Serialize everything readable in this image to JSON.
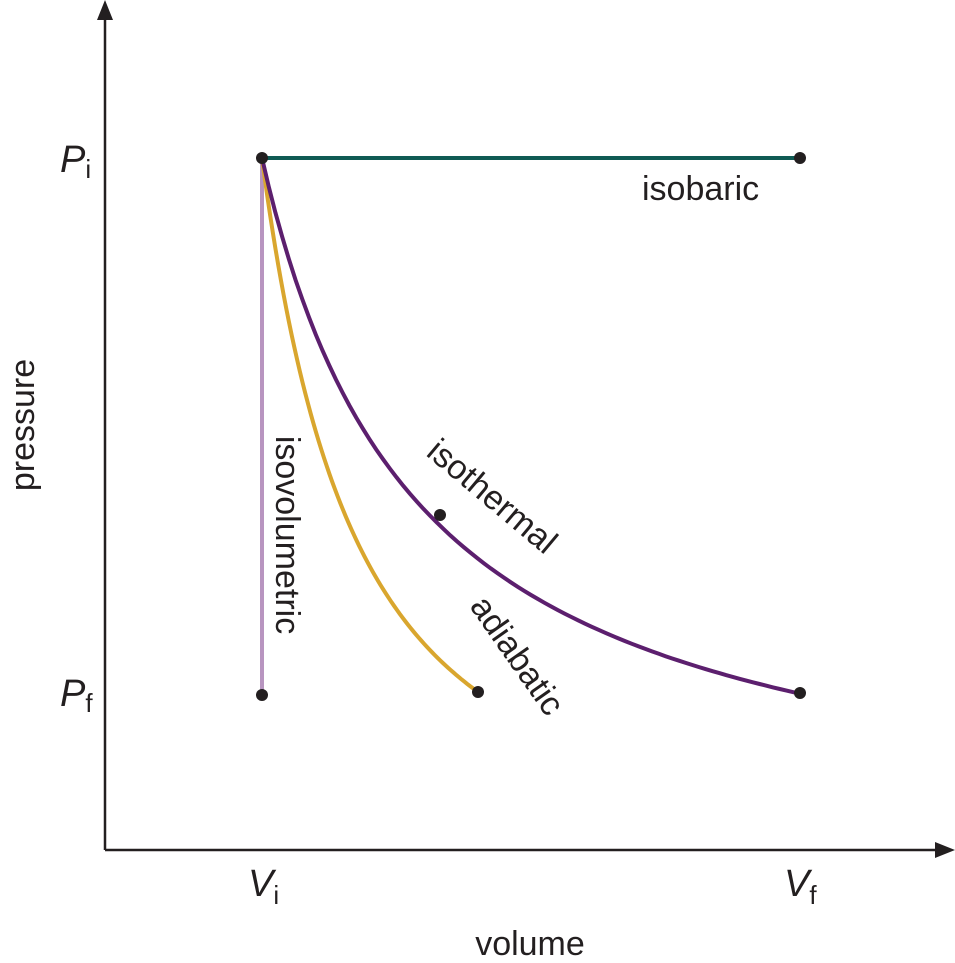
{
  "axes": {
    "y_label": "pressure",
    "x_label": "volume"
  },
  "y_ticks": [
    {
      "symbol": "P",
      "subscript": "i"
    },
    {
      "symbol": "P",
      "subscript": "f"
    }
  ],
  "x_ticks": [
    {
      "symbol": "V",
      "subscript": "i"
    },
    {
      "symbol": "V",
      "subscript": "f"
    }
  ],
  "processes": [
    {
      "label": "isobaric"
    },
    {
      "label": "isovolumetric"
    },
    {
      "label": "isothermal"
    },
    {
      "label": "adiabatic"
    }
  ]
}
